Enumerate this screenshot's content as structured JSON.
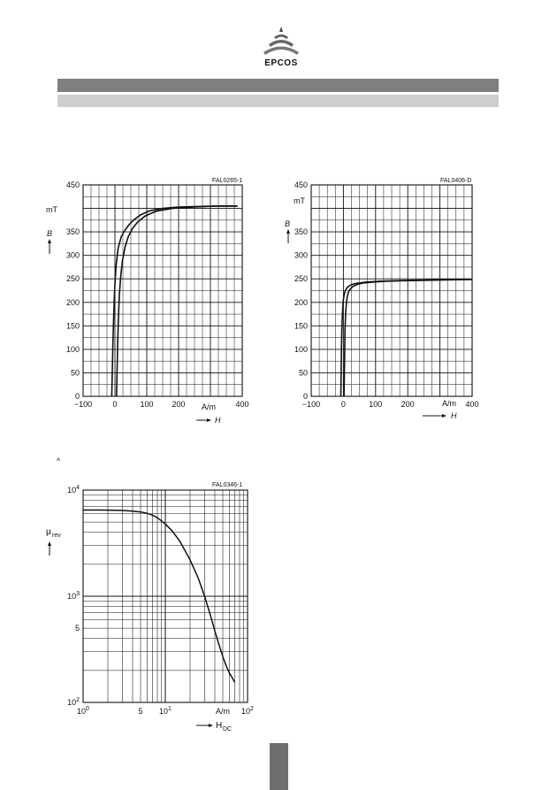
{
  "logo": {
    "text": "EPCOS"
  },
  "hat_mark": "^",
  "chart_data": [
    {
      "type": "line",
      "ref": "FAL0265-1",
      "xlabel": "H",
      "xunit": "A/m",
      "ylabel": "B",
      "yunit": "mT",
      "xlim": [
        -100,
        400
      ],
      "ylim": [
        0,
        450
      ],
      "xticks": [
        "−100",
        "0",
        "100",
        "200",
        "400"
      ],
      "yticks": [
        "0",
        "50",
        "100",
        "150",
        "200",
        "250",
        "300",
        "350",
        "450"
      ],
      "grid": true,
      "series": [
        {
          "x": [
            -10,
            -8,
            -6,
            -4,
            -2,
            0,
            4,
            10,
            20,
            30,
            45,
            60,
            80,
            110,
            150,
            200,
            260,
            320,
            385
          ],
          "y": [
            0,
            60,
            120,
            170,
            210,
            240,
            280,
            315,
            340,
            352,
            366,
            376,
            386,
            395,
            400,
            403,
            404,
            405,
            405
          ]
        },
        {
          "x": [
            5,
            7,
            9,
            11,
            14,
            18,
            24,
            32,
            42,
            55,
            70,
            95,
            130,
            180,
            250,
            320,
            385
          ],
          "y": [
            0,
            60,
            120,
            170,
            215,
            255,
            290,
            318,
            340,
            357,
            370,
            384,
            394,
            400,
            403,
            405,
            405
          ]
        }
      ]
    },
    {
      "type": "line",
      "ref": "FAL0406-D",
      "xlabel": "H",
      "xunit": "A/m",
      "ylabel": "B",
      "yunit": "mT",
      "xlim": [
        -100,
        400
      ],
      "ylim": [
        0,
        450
      ],
      "xticks": [
        "−100",
        "0",
        "100",
        "200",
        "400"
      ],
      "yticks": [
        "0",
        "50",
        "100",
        "150",
        "200",
        "250",
        "300",
        "350",
        "450"
      ],
      "grid": true,
      "series": [
        {
          "x": [
            -8,
            -7,
            -6,
            -5,
            -3,
            -1,
            2,
            6,
            12,
            20,
            30,
            45,
            70,
            110,
            160,
            220,
            290,
            360,
            400
          ],
          "y": [
            0,
            50,
            100,
            140,
            175,
            200,
            215,
            225,
            232,
            236,
            239,
            241,
            243,
            245,
            246,
            247,
            248,
            249,
            249
          ]
        },
        {
          "x": [
            2,
            3,
            4,
            5,
            7,
            9,
            12,
            16,
            22,
            30,
            42,
            60,
            90,
            130,
            190,
            260,
            330,
            400
          ],
          "y": [
            0,
            50,
            100,
            140,
            175,
            197,
            212,
            222,
            229,
            234,
            238,
            241,
            243,
            245,
            246,
            247,
            248,
            249
          ]
        }
      ]
    },
    {
      "type": "line",
      "ref": "FAL0346-1",
      "xlabel": "H",
      "xlabel_sub": "DC",
      "xunit": "A/m",
      "ylabel": "μ",
      "ylabel_sub": "rev",
      "xscale": "log",
      "yscale": "log",
      "xlim": [
        1,
        100
      ],
      "ylim": [
        100,
        10000
      ],
      "xticks": [
        {
          "v": 1,
          "base": "10",
          "exp": "0"
        },
        {
          "v": 5,
          "base": "5",
          "exp": ""
        },
        {
          "v": 10,
          "base": "10",
          "exp": "1"
        },
        {
          "v": 100,
          "base": "10",
          "exp": "2"
        }
      ],
      "yticks": [
        {
          "v": 100,
          "base": "10",
          "exp": "2"
        },
        {
          "v": 500,
          "base": "5",
          "exp": ""
        },
        {
          "v": 1000,
          "base": "10",
          "exp": "3"
        },
        {
          "v": 10000,
          "base": "10",
          "exp": "4"
        }
      ],
      "grid": true,
      "series": [
        {
          "x": [
            1,
            1.5,
            2,
            3,
            4,
            5,
            6,
            7,
            8,
            10,
            12,
            15,
            20,
            25,
            30,
            35,
            40,
            45,
            50,
            55,
            60,
            70
          ],
          "y": [
            6500,
            6500,
            6480,
            6430,
            6350,
            6230,
            6050,
            5800,
            5500,
            4800,
            4150,
            3300,
            2200,
            1500,
            1000,
            680,
            470,
            350,
            270,
            220,
            190,
            155
          ]
        }
      ]
    }
  ]
}
